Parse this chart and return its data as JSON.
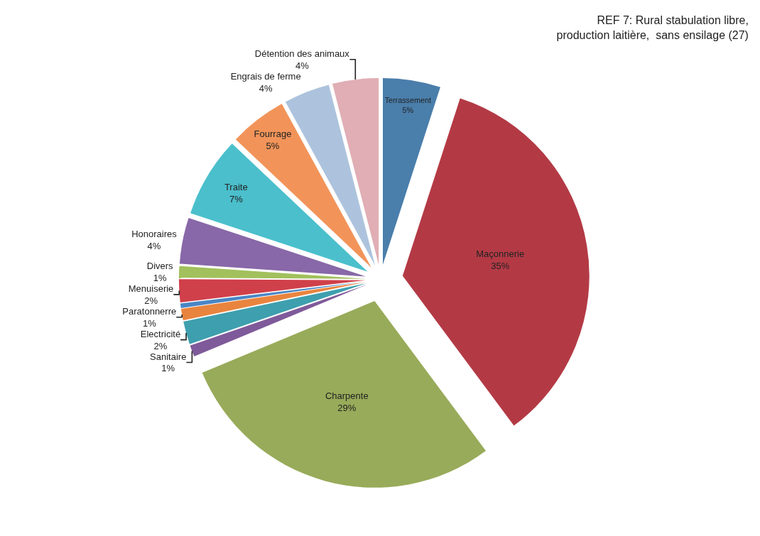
{
  "chart_data": {
    "type": "pie",
    "title": "REF 7: Rural stabulation libre,\nproduction laitière,  sans ensilage (27)",
    "categories": [
      "Terrassement",
      "Maçonnerie",
      "Charpente",
      "Sanitaire",
      "Electricité",
      "Paratonnerre",
      null,
      "Menuiserie",
      "Divers",
      "Honoraires",
      "Traite",
      "Fourrage",
      "Engrais de ferme",
      "Détention des animaux"
    ],
    "values": [
      5,
      35,
      29,
      1,
      2,
      1,
      0.4,
      2,
      1,
      4,
      7,
      5,
      4,
      4
    ],
    "value_labels": [
      "5%",
      "35%",
      "29%",
      "1%",
      "2%",
      "1%",
      null,
      "2%",
      "1%",
      "4%",
      "7%",
      "5%",
      "4%",
      "4%"
    ],
    "colors": [
      "#4a7eab",
      "#b33a45",
      "#98ab5a",
      "#7f5a9a",
      "#3e9fae",
      "#e9843e",
      "#4a86c5",
      "#d0404a",
      "#a2c05c",
      "#8868a8",
      "#4bbfcc",
      "#f2945a",
      "#adc3dd",
      "#e0aeb4"
    ],
    "legend": false
  }
}
